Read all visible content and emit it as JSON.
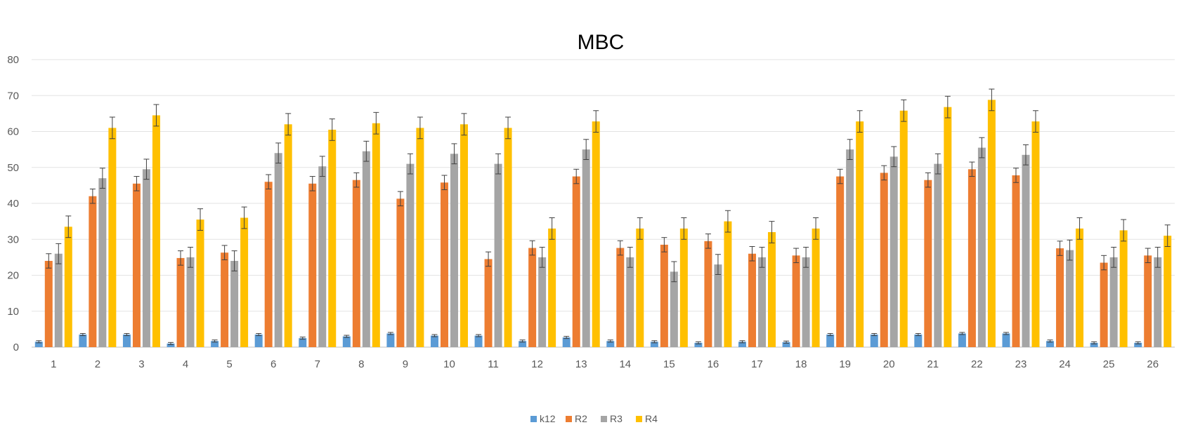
{
  "chart_data": {
    "type": "bar",
    "title": "MBC",
    "xlabel": "",
    "ylabel": "",
    "ylim": [
      0,
      80
    ],
    "yticks": [
      0,
      10,
      20,
      30,
      40,
      50,
      60,
      70,
      80
    ],
    "grid": true,
    "legend_position": "bottom",
    "error_bars": true,
    "categories": [
      "1",
      "2",
      "3",
      "4",
      "5",
      "6",
      "7",
      "8",
      "9",
      "10",
      "11",
      "12",
      "13",
      "14",
      "15",
      "16",
      "17",
      "18",
      "19",
      "20",
      "21",
      "22",
      "23",
      "24",
      "25",
      "26"
    ],
    "series": [
      {
        "name": "k12",
        "color": "#5B9BD5",
        "values": [
          1.5,
          3.5,
          3.5,
          1,
          1.7,
          3.5,
          2.5,
          3,
          3.8,
          3.2,
          3.2,
          1.7,
          2.7,
          1.7,
          1.5,
          1.2,
          1.5,
          1.4,
          3.5,
          3.5,
          3.5,
          3.8,
          3.8,
          1.7,
          1.2,
          1.2
        ],
        "errors": [
          0.3,
          0.3,
          0.3,
          0.3,
          0.3,
          0.3,
          0.3,
          0.3,
          0.3,
          0.3,
          0.3,
          0.3,
          0.3,
          0.3,
          0.3,
          0.3,
          0.3,
          0.3,
          0.3,
          0.3,
          0.3,
          0.3,
          0.3,
          0.3,
          0.3,
          0.3
        ]
      },
      {
        "name": "R2",
        "color": "#ED7D31",
        "values": [
          24,
          42,
          45.5,
          24.8,
          26.3,
          46,
          45.5,
          46.5,
          41.3,
          45.8,
          24.5,
          27.6,
          47.5,
          27.6,
          28.5,
          29.5,
          26,
          25.5,
          47.5,
          48.5,
          46.5,
          49.5,
          47.8,
          27.5,
          23.5,
          25.5
        ],
        "errors": [
          2,
          2,
          2,
          2,
          2,
          2,
          2,
          2,
          2,
          2,
          2,
          2,
          2,
          2,
          2,
          2,
          2,
          2,
          2,
          2,
          2,
          2,
          2,
          2,
          2,
          2
        ]
      },
      {
        "name": "R3",
        "color": "#A5A5A5",
        "values": [
          26,
          47,
          49.5,
          25,
          24,
          54,
          50.3,
          54.5,
          51,
          53.8,
          51,
          25,
          55,
          25,
          21,
          23,
          25,
          25,
          55,
          53,
          51,
          55.5,
          53.5,
          27,
          25,
          25
        ],
        "errors": [
          2.8,
          2.8,
          2.8,
          2.8,
          2.8,
          2.8,
          2.8,
          2.8,
          2.8,
          2.8,
          2.8,
          2.8,
          2.8,
          2.8,
          2.8,
          2.8,
          2.8,
          2.8,
          2.8,
          2.8,
          2.8,
          2.8,
          2.8,
          2.8,
          2.8,
          2.8
        ]
      },
      {
        "name": "R4",
        "color": "#FFC000",
        "values": [
          33.5,
          61,
          64.5,
          35.5,
          36,
          62,
          60.5,
          62.3,
          61,
          62,
          61,
          33,
          62.8,
          33,
          33,
          35,
          32,
          33,
          62.8,
          65.8,
          66.8,
          68.8,
          62.8,
          33,
          32.5,
          31
        ],
        "errors": [
          3,
          3,
          3,
          3,
          3,
          3,
          3,
          3,
          3,
          3,
          3,
          3,
          3,
          3,
          3,
          3,
          3,
          3,
          3,
          3,
          3,
          3,
          3,
          3,
          3,
          3
        ]
      }
    ]
  }
}
